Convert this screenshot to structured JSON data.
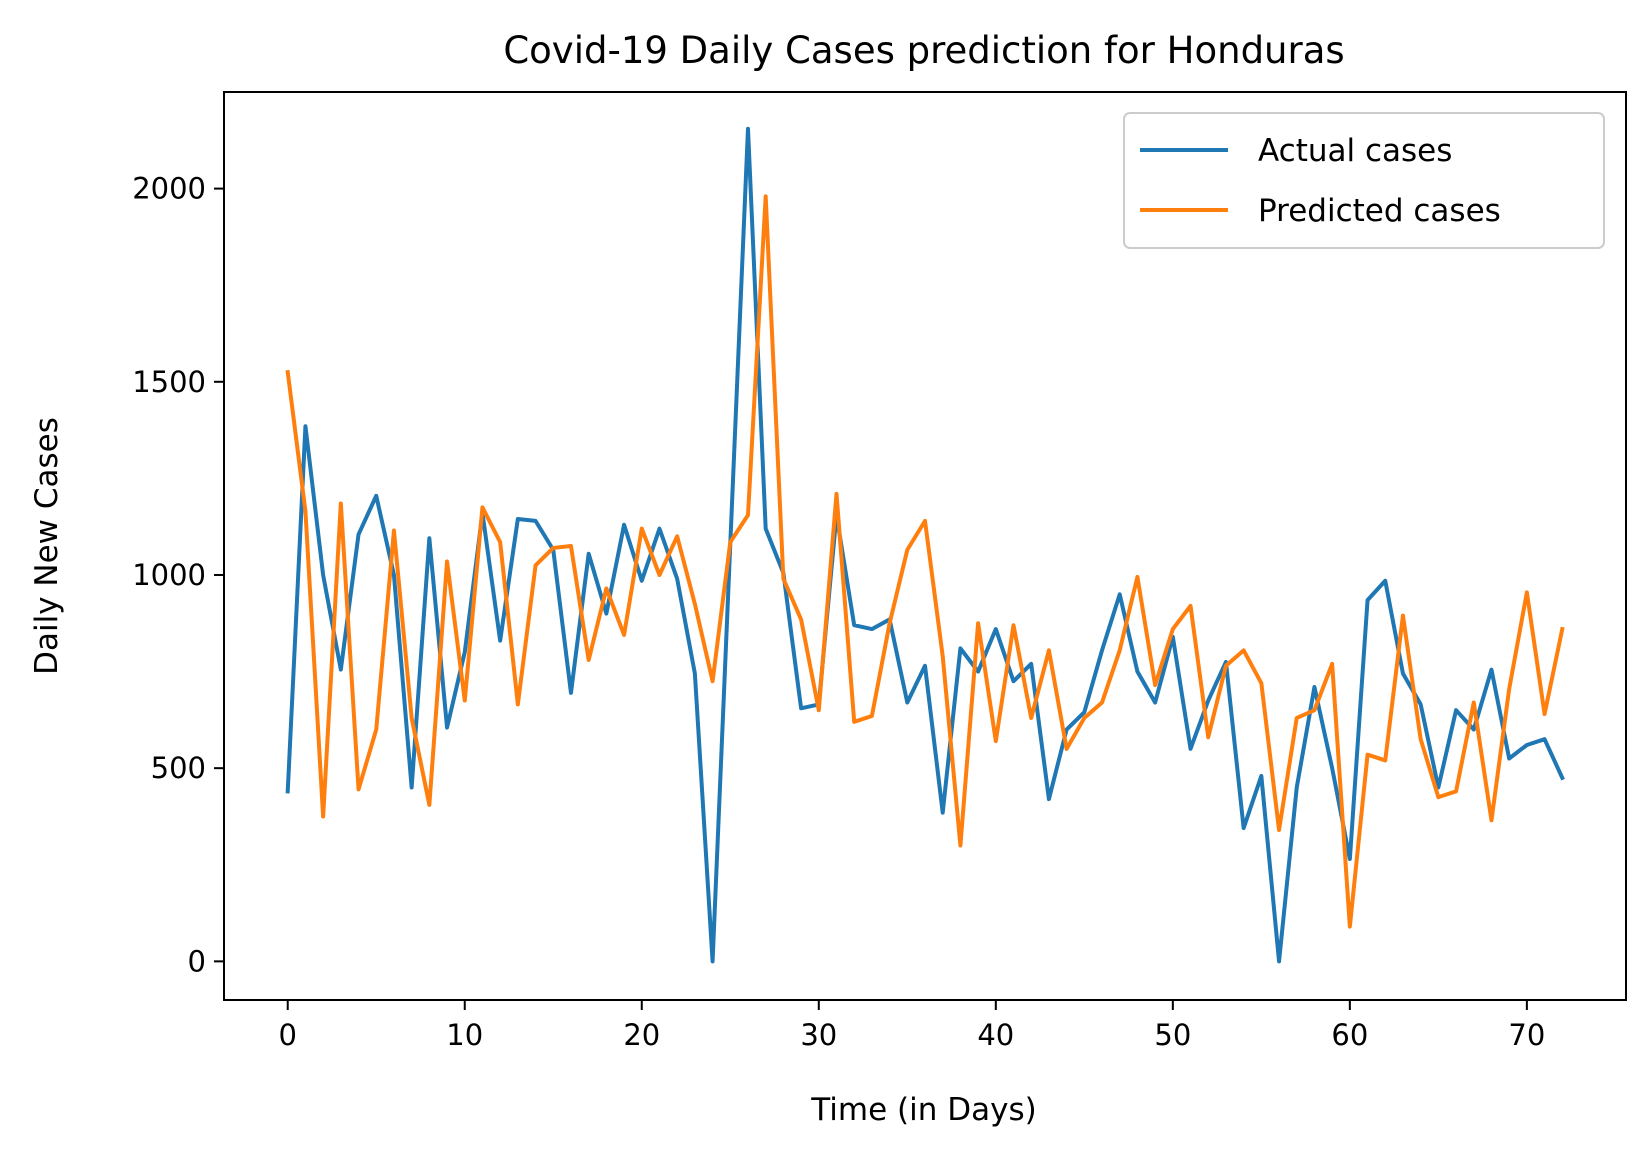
{
  "chart_data": {
    "type": "line",
    "title": "Covid-19 Daily Cases prediction for Honduras",
    "xlabel": "Time (in Days)",
    "ylabel": "Daily New Cases",
    "xlim": [
      -3.6,
      75.6
    ],
    "ylim": [
      -100,
      2250
    ],
    "x_ticks": [
      0,
      10,
      20,
      30,
      40,
      50,
      60,
      70
    ],
    "x_tick_labels": [
      "0",
      "10",
      "20",
      "30",
      "40",
      "50",
      "60",
      "70"
    ],
    "y_ticks": [
      0,
      500,
      1000,
      1500,
      2000
    ],
    "y_tick_labels": [
      "0",
      "500",
      "1000",
      "1500",
      "2000"
    ],
    "legend_position": "top-right",
    "grid": false,
    "series": [
      {
        "name": "Actual cases",
        "color": "#1f77b4",
        "values": [
          440,
          1385,
          1000,
          755,
          1105,
          1205,
          1000,
          450,
          1095,
          605,
          800,
          1160,
          830,
          1145,
          1140,
          1065,
          695,
          1055,
          900,
          1130,
          985,
          1120,
          990,
          745,
          0,
          1080,
          2155,
          1120,
          1005,
          655,
          665,
          1155,
          870,
          860,
          885,
          670,
          765,
          385,
          810,
          750,
          860,
          725,
          770,
          420,
          600,
          645,
          805,
          950,
          750,
          670,
          840,
          550,
          675,
          775,
          345,
          480,
          0,
          450,
          710,
          500,
          265,
          935,
          985,
          745,
          665,
          450,
          650,
          600,
          755,
          525,
          560,
          575,
          475
        ]
      },
      {
        "name": "Predicted cases",
        "color": "#ff7f0e",
        "values": [
          1525,
          1165,
          375,
          1185,
          445,
          600,
          1115,
          630,
          405,
          1035,
          675,
          1175,
          1085,
          665,
          1025,
          1070,
          1075,
          780,
          965,
          845,
          1120,
          1000,
          1100,
          925,
          725,
          1085,
          1155,
          1980,
          990,
          885,
          650,
          1210,
          620,
          635,
          875,
          1065,
          1140,
          790,
          300,
          875,
          570,
          870,
          630,
          805,
          550,
          630,
          670,
          805,
          995,
          715,
          860,
          920,
          580,
          765,
          805,
          720,
          340,
          630,
          650,
          770,
          90,
          535,
          520,
          895,
          575,
          425,
          440,
          670,
          365,
          705,
          955,
          640,
          860
        ]
      }
    ]
  }
}
